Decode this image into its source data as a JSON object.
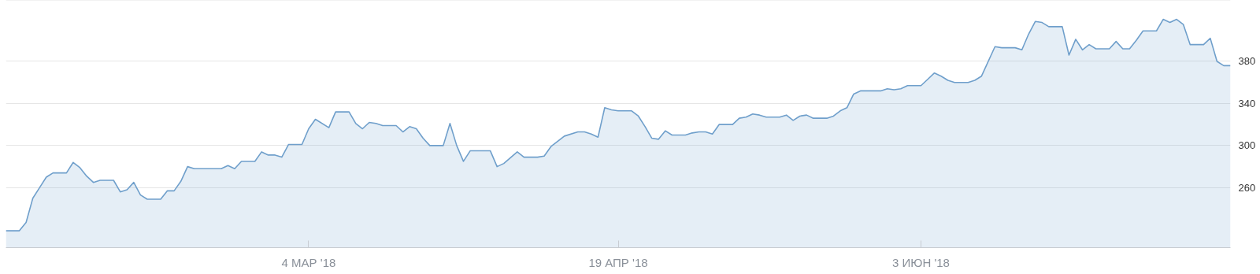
{
  "chart_data": {
    "type": "area",
    "x": [
      "2018-01-18",
      "2018-01-20",
      "2018-01-21",
      "2018-01-22",
      "2018-01-23",
      "2018-01-24",
      "2018-01-25",
      "2018-01-27",
      "2018-01-28",
      "2018-01-29",
      "2018-01-30",
      "2018-01-31",
      "2018-02-01",
      "2018-02-03",
      "2018-02-04",
      "2018-02-05",
      "2018-02-06",
      "2018-02-07",
      "2018-02-08",
      "2018-02-10",
      "2018-02-11",
      "2018-02-12",
      "2018-02-13",
      "2018-02-14",
      "2018-02-15",
      "2018-02-19",
      "2018-02-20",
      "2018-02-21",
      "2018-02-22",
      "2018-02-24",
      "2018-02-25",
      "2018-02-26",
      "2018-02-27",
      "2018-02-28",
      "2018-03-01",
      "2018-03-03",
      "2018-03-04",
      "2018-03-05",
      "2018-03-07",
      "2018-03-08",
      "2018-03-10",
      "2018-03-11",
      "2018-03-12",
      "2018-03-13",
      "2018-03-14",
      "2018-03-15",
      "2018-03-17",
      "2018-03-18",
      "2018-03-19",
      "2018-03-20",
      "2018-03-21",
      "2018-03-22",
      "2018-03-24",
      "2018-03-25",
      "2018-03-26",
      "2018-03-27",
      "2018-03-28",
      "2018-03-31",
      "2018-04-01",
      "2018-04-02",
      "2018-04-04",
      "2018-04-05",
      "2018-04-07",
      "2018-04-08",
      "2018-04-09",
      "2018-04-11",
      "2018-04-13",
      "2018-04-14",
      "2018-04-15",
      "2018-04-16",
      "2018-04-17",
      "2018-04-18",
      "2018-04-19",
      "2018-04-21",
      "2018-04-22",
      "2018-04-23",
      "2018-04-24",
      "2018-04-25",
      "2018-04-26",
      "2018-04-27",
      "2018-04-29",
      "2018-04-30",
      "2018-05-01",
      "2018-05-02",
      "2018-05-03",
      "2018-05-04",
      "2018-05-06",
      "2018-05-07",
      "2018-05-08",
      "2018-05-09",
      "2018-05-10",
      "2018-05-11",
      "2018-05-13",
      "2018-05-14",
      "2018-05-15",
      "2018-05-16",
      "2018-05-17",
      "2018-05-18",
      "2018-05-20",
      "2018-05-21",
      "2018-05-22",
      "2018-05-23",
      "2018-05-24",
      "2018-05-25",
      "2018-05-28",
      "2018-05-29",
      "2018-05-30",
      "2018-05-31",
      "2018-06-01",
      "2018-06-03",
      "2018-06-04",
      "2018-06-05",
      "2018-06-06",
      "2018-06-07",
      "2018-06-08",
      "2018-06-10",
      "2018-06-11",
      "2018-06-12",
      "2018-06-14",
      "2018-06-15",
      "2018-06-17",
      "2018-06-18",
      "2018-06-19",
      "2018-06-20",
      "2018-06-21",
      "2018-06-22",
      "2018-06-24",
      "2018-06-25",
      "2018-06-26",
      "2018-06-27",
      "2018-06-28",
      "2018-06-29",
      "2018-07-01",
      "2018-07-02",
      "2018-07-03",
      "2018-07-04",
      "2018-07-05",
      "2018-07-06",
      "2018-07-08",
      "2018-07-09",
      "2018-07-10",
      "2018-07-11",
      "2018-07-12",
      "2018-07-13",
      "2018-07-15",
      "2018-07-16",
      "2018-07-17",
      "2018-07-18",
      "2018-07-19"
    ],
    "series": [
      {
        "color": "#6f9fcb",
        "values": [
          219,
          219,
          227,
          250,
          260,
          270,
          274,
          274,
          284,
          279,
          271,
          265,
          267,
          267,
          256,
          258,
          265,
          253,
          249,
          249,
          257,
          257,
          266,
          280,
          278,
          278,
          281,
          278,
          285,
          285,
          294,
          291,
          291,
          289,
          301,
          301,
          316,
          325,
          317,
          332,
          332,
          321,
          316,
          322,
          321,
          319,
          319,
          313,
          318,
          316,
          307,
          300,
          300,
          321,
          300,
          285,
          295,
          295,
          280,
          283,
          294,
          289,
          289,
          290,
          299,
          309,
          313,
          313,
          311,
          308,
          336,
          334,
          333,
          333,
          328,
          318,
          307,
          306,
          314,
          310,
          310,
          312,
          313,
          313,
          311,
          320,
          320,
          326,
          327,
          330,
          329,
          327,
          327,
          329,
          324,
          328,
          329,
          326,
          326,
          328,
          333,
          336,
          349,
          352,
          352,
          354,
          353,
          354,
          357,
          357,
          363,
          369,
          366,
          362,
          360,
          360,
          362,
          366,
          394,
          393,
          393,
          391,
          406,
          418,
          417,
          413,
          413,
          386,
          401,
          391,
          396,
          392,
          392,
          399,
          392,
          392,
          400,
          409,
          409,
          420,
          417,
          420,
          415,
          396,
          396,
          402,
          380,
          376,
          376
        ]
      }
    ],
    "ylim": [
      203,
      438
    ],
    "yticks": [
      260,
      300,
      340,
      380
    ],
    "xlim": [
      "2018-01-18",
      "2018-07-19"
    ],
    "xticks": [
      {
        "value": "2018-03-04",
        "label": "4 МАР '18"
      },
      {
        "value": "2018-04-19",
        "label": "19 АПР '18"
      },
      {
        "value": "2018-06-03",
        "label": "3 ИЮН '18"
      }
    ],
    "grid": "y"
  }
}
